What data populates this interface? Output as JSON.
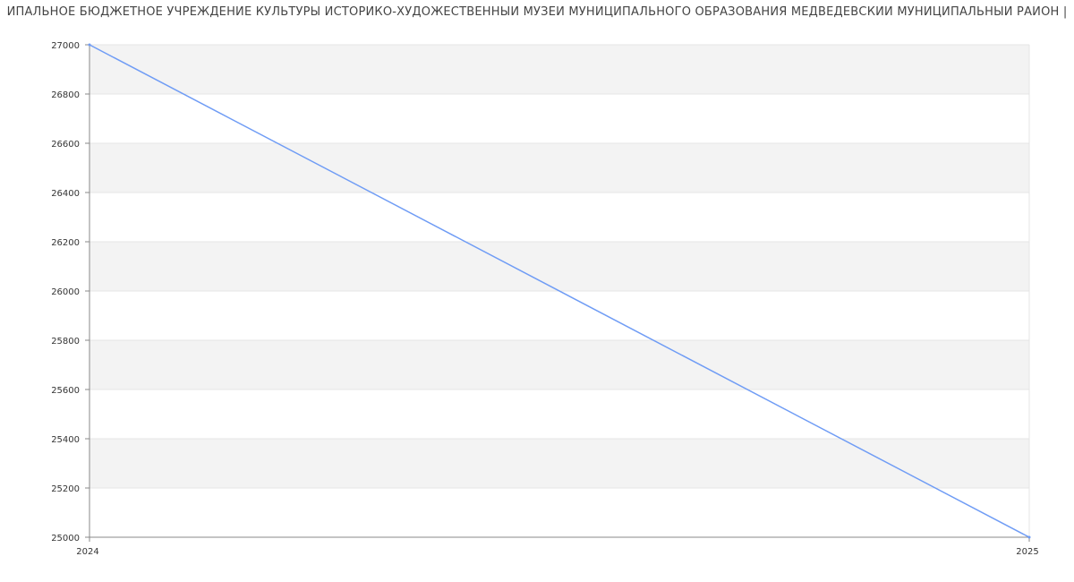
{
  "chart_data": {
    "type": "line",
    "title": "ИПАЛЬНОЕ БЮДЖЕТНОЕ УЧРЕЖДЕНИЕ КУЛЬТУРЫ ИСТОРИКО-ХУДОЖЕСТВЕННЫЙ МУЗЕЙ МУНИЦИПАЛЬНОГО ОБРАЗОВАНИЯ МЕДВЕДЕВСКИЙ МУНИЦИПАЛЬНЫЙ РАЙОН |",
    "x": [
      "2024",
      "2025"
    ],
    "series": [
      {
        "values": [
          27000,
          25000
        ]
      }
    ],
    "ylim": [
      25000,
      27000
    ],
    "yticks": [
      25000,
      25200,
      25400,
      25600,
      25800,
      26000,
      26200,
      26400,
      26600,
      26800,
      27000
    ],
    "grid": true,
    "line_color": "#6f9cf5",
    "band_color": "#f3f3f3"
  }
}
